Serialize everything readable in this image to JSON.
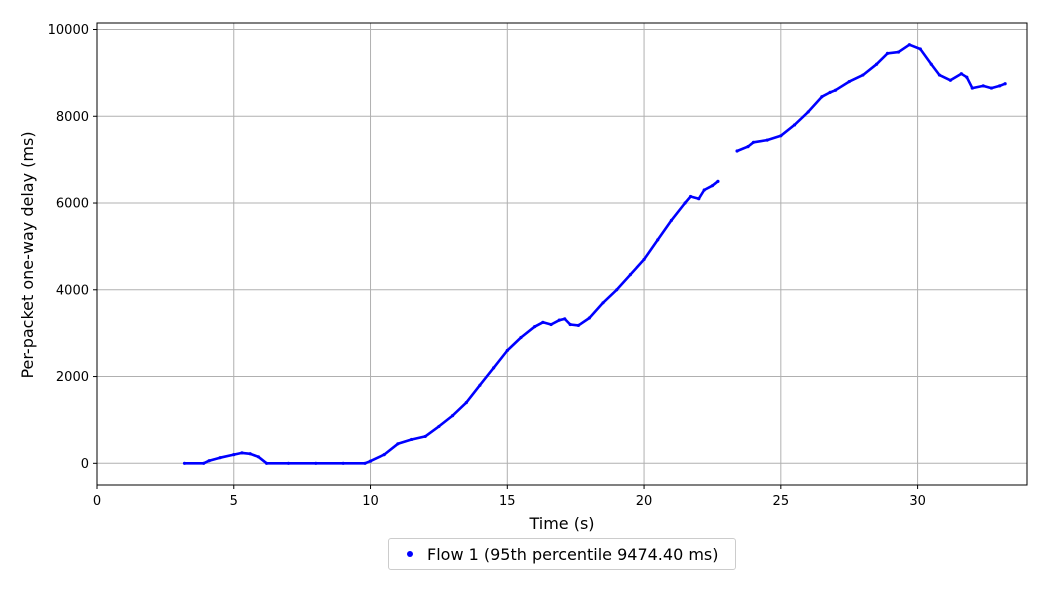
{
  "chart_data": {
    "type": "scatter",
    "title": "",
    "xlabel": "Time (s)",
    "ylabel": "Per-packet one-way delay (ms)",
    "xlim": [
      0,
      34
    ],
    "ylim": [
      -500,
      10150
    ],
    "xticks": [
      "0",
      "5",
      "10",
      "15",
      "20",
      "25",
      "30"
    ],
    "yticks": [
      "0",
      "2000",
      "4000",
      "6000",
      "8000",
      "10000"
    ],
    "grid": true,
    "legend_position": "bottom-center",
    "colors": {
      "series": "#0000ff",
      "grid": "#b0b0b0",
      "axes": "#000000"
    },
    "series": [
      {
        "name": "Flow 1 (95th percentile 9474.40 ms)",
        "segments": [
          [
            [
              3.2,
              0
            ],
            [
              3.9,
              0
            ],
            [
              4.1,
              60
            ],
            [
              4.5,
              130
            ],
            [
              5.0,
              200
            ],
            [
              5.3,
              240
            ],
            [
              5.6,
              220
            ],
            [
              5.9,
              150
            ],
            [
              6.2,
              0
            ],
            [
              7.0,
              0
            ],
            [
              8.0,
              0
            ],
            [
              9.0,
              0
            ],
            [
              9.8,
              0
            ],
            [
              10.0,
              50
            ],
            [
              10.5,
              200
            ],
            [
              11.0,
              450
            ],
            [
              11.5,
              550
            ],
            [
              12.0,
              620
            ],
            [
              12.5,
              850
            ],
            [
              13.0,
              1100
            ],
            [
              13.5,
              1400
            ],
            [
              14.0,
              1800
            ],
            [
              14.5,
              2200
            ],
            [
              15.0,
              2600
            ],
            [
              15.5,
              2900
            ],
            [
              16.0,
              3150
            ],
            [
              16.3,
              3250
            ],
            [
              16.6,
              3200
            ],
            [
              16.9,
              3300
            ],
            [
              17.1,
              3330
            ],
            [
              17.3,
              3200
            ],
            [
              17.6,
              3180
            ],
            [
              18.0,
              3350
            ],
            [
              18.5,
              3700
            ],
            [
              19.0,
              4000
            ],
            [
              19.5,
              4350
            ],
            [
              20.0,
              4700
            ],
            [
              20.5,
              5150
            ],
            [
              21.0,
              5600
            ],
            [
              21.5,
              6000
            ],
            [
              21.7,
              6150
            ],
            [
              22.0,
              6100
            ],
            [
              22.2,
              6300
            ],
            [
              22.5,
              6400
            ],
            [
              22.7,
              6500
            ]
          ],
          [
            [
              23.4,
              7200
            ],
            [
              23.8,
              7300
            ],
            [
              24.0,
              7400
            ],
            [
              24.5,
              7450
            ],
            [
              25.0,
              7550
            ],
            [
              25.5,
              7800
            ],
            [
              26.0,
              8100
            ],
            [
              26.5,
              8450
            ],
            [
              26.8,
              8550
            ],
            [
              27.0,
              8600
            ],
            [
              27.5,
              8800
            ],
            [
              28.0,
              8950
            ],
            [
              28.5,
              9200
            ],
            [
              28.9,
              9450
            ],
            [
              29.3,
              9480
            ],
            [
              29.7,
              9650
            ],
            [
              30.1,
              9550
            ],
            [
              30.5,
              9200
            ],
            [
              30.8,
              8950
            ],
            [
              31.2,
              8830
            ],
            [
              31.6,
              8980
            ],
            [
              31.8,
              8900
            ],
            [
              32.0,
              8650
            ],
            [
              32.4,
              8700
            ],
            [
              32.7,
              8650
            ],
            [
              33.0,
              8700
            ],
            [
              33.2,
              8750
            ]
          ]
        ]
      }
    ]
  }
}
